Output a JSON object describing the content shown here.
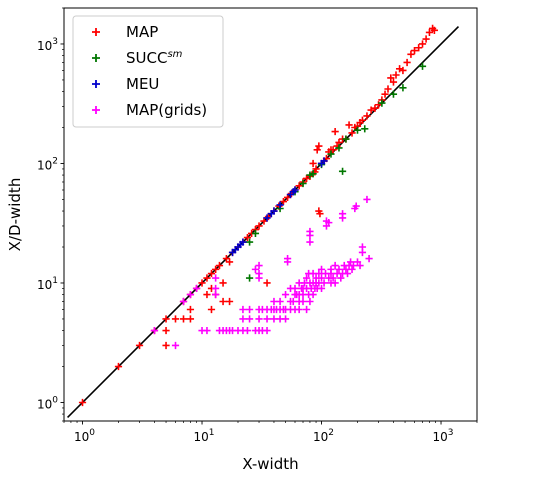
{
  "chart_data": {
    "type": "scatter",
    "xlabel": "X-width",
    "ylabel": "X/D-width",
    "xscale": "log",
    "yscale": "log",
    "xlim": [
      0.7,
      2000
    ],
    "ylim": [
      0.7,
      2000
    ],
    "xticks": [
      {
        "base": "10",
        "exp": "0"
      },
      {
        "base": "10",
        "exp": "1"
      },
      {
        "base": "10",
        "exp": "2"
      },
      {
        "base": "10",
        "exp": "3"
      }
    ],
    "yticks": [
      {
        "base": "10",
        "exp": "0"
      },
      {
        "base": "10",
        "exp": "1"
      },
      {
        "base": "10",
        "exp": "2"
      },
      {
        "base": "10",
        "exp": "3"
      }
    ],
    "grid": false,
    "legend_position": "top-left",
    "reference_line": {
      "slope": 1,
      "color": "#000000"
    },
    "series": [
      {
        "name": "MAP",
        "name_sup": "",
        "color": "#ff0000",
        "marker": "+",
        "points": [
          [
            1,
            1
          ],
          [
            2,
            2
          ],
          [
            3,
            3
          ],
          [
            4,
            4
          ],
          [
            5,
            5
          ],
          [
            5,
            4
          ],
          [
            5,
            3
          ],
          [
            6,
            5
          ],
          [
            7,
            5
          ],
          [
            7,
            7
          ],
          [
            8,
            8
          ],
          [
            8,
            5
          ],
          [
            8,
            6
          ],
          [
            9,
            9
          ],
          [
            10,
            10
          ],
          [
            11,
            11
          ],
          [
            11,
            8
          ],
          [
            12,
            12
          ],
          [
            12,
            9
          ],
          [
            12,
            6
          ],
          [
            13,
            13
          ],
          [
            13,
            8
          ],
          [
            14,
            14
          ],
          [
            15,
            10
          ],
          [
            15,
            7
          ],
          [
            16,
            16
          ],
          [
            17,
            15
          ],
          [
            17,
            7
          ],
          [
            18,
            18
          ],
          [
            20,
            20
          ],
          [
            22,
            22
          ],
          [
            24,
            24
          ],
          [
            26,
            26
          ],
          [
            28,
            28
          ],
          [
            30,
            30
          ],
          [
            33,
            33
          ],
          [
            35,
            10
          ],
          [
            36,
            36
          ],
          [
            40,
            40
          ],
          [
            44,
            44
          ],
          [
            48,
            48
          ],
          [
            52,
            52
          ],
          [
            56,
            56
          ],
          [
            60,
            60
          ],
          [
            65,
            65
          ],
          [
            70,
            70
          ],
          [
            75,
            75
          ],
          [
            80,
            78
          ],
          [
            85,
            100
          ],
          [
            88,
            85
          ],
          [
            90,
            90
          ],
          [
            92,
            130
          ],
          [
            95,
            140
          ],
          [
            95,
            40
          ],
          [
            97,
            38
          ],
          [
            100,
            100
          ],
          [
            105,
            105
          ],
          [
            110,
            110
          ],
          [
            115,
            125
          ],
          [
            120,
            130
          ],
          [
            125,
            130
          ],
          [
            130,
            185
          ],
          [
            135,
            140
          ],
          [
            140,
            150
          ],
          [
            150,
            160
          ],
          [
            160,
            160
          ],
          [
            170,
            210
          ],
          [
            180,
            180
          ],
          [
            190,
            200
          ],
          [
            200,
            205
          ],
          [
            210,
            220
          ],
          [
            220,
            230
          ],
          [
            240,
            250
          ],
          [
            260,
            280
          ],
          [
            280,
            290
          ],
          [
            300,
            310
          ],
          [
            320,
            340
          ],
          [
            340,
            380
          ],
          [
            360,
            420
          ],
          [
            380,
            520
          ],
          [
            400,
            480
          ],
          [
            420,
            550
          ],
          [
            450,
            620
          ],
          [
            480,
            600
          ],
          [
            520,
            700
          ],
          [
            560,
            820
          ],
          [
            600,
            880
          ],
          [
            650,
            930
          ],
          [
            700,
            1000
          ],
          [
            750,
            1100
          ],
          [
            800,
            1250
          ],
          [
            850,
            1350
          ],
          [
            880,
            1300
          ]
        ]
      },
      {
        "name": "SUCC",
        "name_sup": "sm",
        "color": "#007700",
        "marker": "+",
        "points": [
          [
            25,
            11
          ],
          [
            25,
            22
          ],
          [
            28,
            26
          ],
          [
            45,
            42
          ],
          [
            60,
            58
          ],
          [
            70,
            68
          ],
          [
            80,
            80
          ],
          [
            85,
            82
          ],
          [
            100,
            98
          ],
          [
            120,
            120
          ],
          [
            140,
            135
          ],
          [
            150,
            86
          ],
          [
            160,
            160
          ],
          [
            200,
            190
          ],
          [
            230,
            195
          ],
          [
            320,
            320
          ],
          [
            400,
            380
          ],
          [
            480,
            430
          ],
          [
            700,
            650
          ]
        ]
      },
      {
        "name": "MEU",
        "name_sup": "",
        "color": "#0000cc",
        "marker": "+",
        "points": [
          [
            18,
            18
          ],
          [
            19,
            19
          ],
          [
            20,
            20
          ],
          [
            21,
            21
          ],
          [
            22,
            22
          ],
          [
            35,
            35
          ],
          [
            38,
            38
          ],
          [
            40,
            40
          ],
          [
            45,
            45
          ],
          [
            55,
            55
          ],
          [
            58,
            58
          ],
          [
            60,
            60
          ],
          [
            100,
            100
          ],
          [
            105,
            105
          ]
        ]
      },
      {
        "name": "MAP(grids)",
        "name_sup": "",
        "color": "#ff00ff",
        "marker": "+",
        "points": [
          [
            4,
            4
          ],
          [
            6,
            3
          ],
          [
            7,
            7
          ],
          [
            8,
            8
          ],
          [
            9,
            9
          ],
          [
            10,
            4
          ],
          [
            11,
            4
          ],
          [
            13,
            11
          ],
          [
            13,
            9
          ],
          [
            13,
            8
          ],
          [
            14,
            4
          ],
          [
            15,
            4
          ],
          [
            16,
            4
          ],
          [
            17,
            4
          ],
          [
            18,
            4
          ],
          [
            20,
            4
          ],
          [
            22,
            4
          ],
          [
            22,
            5
          ],
          [
            22,
            6
          ],
          [
            24,
            4
          ],
          [
            25,
            5
          ],
          [
            25,
            6
          ],
          [
            28,
            4
          ],
          [
            28,
            13
          ],
          [
            30,
            4
          ],
          [
            30,
            5
          ],
          [
            30,
            6
          ],
          [
            30,
            11
          ],
          [
            30,
            12
          ],
          [
            30,
            14
          ],
          [
            32,
            4
          ],
          [
            32,
            6
          ],
          [
            35,
            4
          ],
          [
            35,
            5
          ],
          [
            35,
            6
          ],
          [
            38,
            6
          ],
          [
            40,
            5
          ],
          [
            40,
            6
          ],
          [
            40,
            7
          ],
          [
            42,
            6
          ],
          [
            45,
            5
          ],
          [
            45,
            6
          ],
          [
            45,
            7
          ],
          [
            48,
            6
          ],
          [
            50,
            5
          ],
          [
            50,
            6
          ],
          [
            50,
            8
          ],
          [
            52,
            16
          ],
          [
            52,
            15
          ],
          [
            55,
            6
          ],
          [
            55,
            7
          ],
          [
            55,
            9
          ],
          [
            58,
            7
          ],
          [
            60,
            6
          ],
          [
            60,
            8
          ],
          [
            60,
            9
          ],
          [
            62,
            8
          ],
          [
            65,
            6
          ],
          [
            65,
            7
          ],
          [
            65,
            8
          ],
          [
            65,
            10
          ],
          [
            68,
            9
          ],
          [
            70,
            7
          ],
          [
            70,
            8
          ],
          [
            70,
            9
          ],
          [
            72,
            10
          ],
          [
            75,
            6
          ],
          [
            75,
            9
          ],
          [
            75,
            11
          ],
          [
            78,
            8
          ],
          [
            78,
            12
          ],
          [
            80,
            7
          ],
          [
            80,
            10
          ],
          [
            80,
            22
          ],
          [
            80,
            25
          ],
          [
            80,
            27
          ],
          [
            82,
            9
          ],
          [
            85,
            8
          ],
          [
            85,
            10
          ],
          [
            85,
            12
          ],
          [
            88,
            9
          ],
          [
            90,
            10
          ],
          [
            90,
            11
          ],
          [
            92,
            9
          ],
          [
            95,
            10
          ],
          [
            95,
            12
          ],
          [
            100,
            9
          ],
          [
            100,
            11
          ],
          [
            100,
            13
          ],
          [
            105,
            10
          ],
          [
            108,
            12
          ],
          [
            110,
            30
          ],
          [
            110,
            33
          ],
          [
            115,
            11
          ],
          [
            115,
            32
          ],
          [
            120,
            10
          ],
          [
            120,
            12
          ],
          [
            120,
            13
          ],
          [
            125,
            11
          ],
          [
            130,
            10
          ],
          [
            130,
            14
          ],
          [
            135,
            12
          ],
          [
            140,
            13
          ],
          [
            145,
            11
          ],
          [
            150,
            12
          ],
          [
            150,
            35
          ],
          [
            150,
            38
          ],
          [
            155,
            14
          ],
          [
            160,
            13
          ],
          [
            165,
            12
          ],
          [
            170,
            14
          ],
          [
            175,
            15
          ],
          [
            180,
            13
          ],
          [
            185,
            14
          ],
          [
            190,
            42
          ],
          [
            195,
            44
          ],
          [
            200,
            15
          ],
          [
            210,
            14
          ],
          [
            220,
            18
          ],
          [
            220,
            20
          ],
          [
            240,
            50
          ],
          [
            250,
            16
          ]
        ]
      }
    ]
  }
}
